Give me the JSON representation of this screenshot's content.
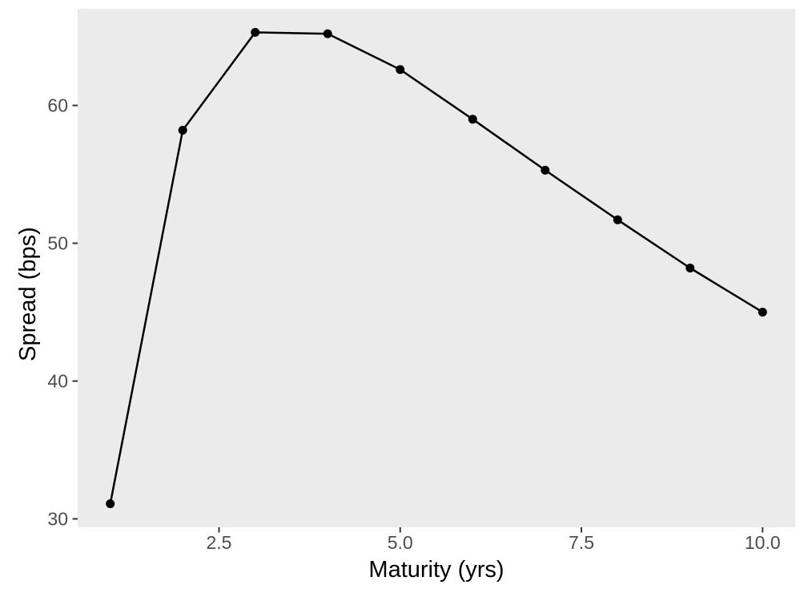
{
  "chart_data": {
    "type": "line",
    "title": "",
    "xlabel": "Maturity (yrs)",
    "ylabel": "Spread (bps)",
    "x": [
      1,
      2,
      3,
      4,
      5,
      6,
      7,
      8,
      9,
      10
    ],
    "series": [
      {
        "name": "spread",
        "values": [
          31.1,
          58.2,
          65.3,
          65.2,
          62.6,
          59.0,
          55.3,
          51.7,
          48.2,
          45.0
        ]
      }
    ],
    "x_ticks": {
      "values": [
        2.5,
        5.0,
        7.5,
        10.0
      ],
      "labels": [
        "2.5",
        "5.0",
        "7.5",
        "10.0"
      ]
    },
    "y_ticks": {
      "values": [
        30,
        40,
        50,
        60
      ],
      "labels": [
        "30",
        "40",
        "50",
        "60"
      ]
    },
    "xlim": [
      0.55,
      10.45
    ],
    "ylim": [
      29.39,
      67.01
    ],
    "grid": false,
    "legend": "none",
    "marker": "circle",
    "style": "ggplot2",
    "colors": {
      "panel_background": "#EBEBEB",
      "outer_background": "#FFFFFF",
      "line": "#000000",
      "point": "#000000",
      "tick_mark": "#333333",
      "tick_label": "#4D4D4D",
      "axis_title": "#000000"
    }
  }
}
